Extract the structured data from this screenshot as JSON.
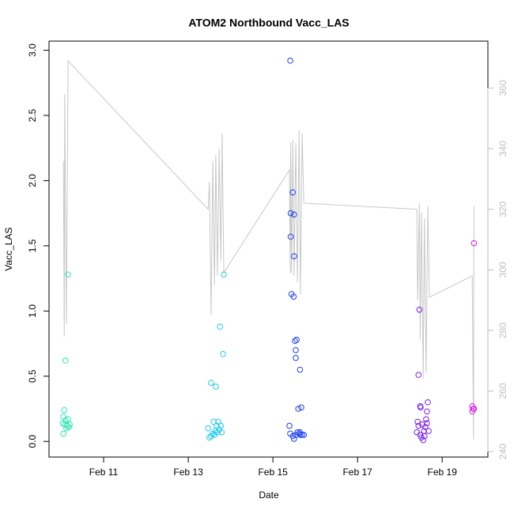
{
  "chart_data": {
    "type": "scatter",
    "title": "ATOM2 Northbound Vacc_LAS",
    "x_label": "Date",
    "y_label": "Vacc_LAS",
    "xlim": [
      9.71,
      20.08
    ],
    "ylim": [
      -0.12,
      3.07
    ],
    "y2lim": [
      238.2,
      375.5
    ],
    "xticks": [
      {
        "value": 11,
        "label": "Feb 11"
      },
      {
        "value": 13,
        "label": "Feb 13"
      },
      {
        "value": 15,
        "label": "Feb 15"
      },
      {
        "value": 17,
        "label": "Feb 17"
      },
      {
        "value": 19,
        "label": "Feb 19"
      }
    ],
    "yticks": [
      {
        "value": 0,
        "label": "0.0"
      },
      {
        "value": 0.5,
        "label": "0.5"
      },
      {
        "value": 1,
        "label": "1.0"
      },
      {
        "value": 1.5,
        "label": "1.5"
      },
      {
        "value": 2,
        "label": "2.0"
      },
      {
        "value": 2.5,
        "label": "2.5"
      },
      {
        "value": 3,
        "label": "3.0"
      }
    ],
    "y2ticks": [
      240,
      260,
      280,
      300,
      320,
      340,
      360
    ],
    "y2_color": "#bebebe",
    "series": [
      {
        "color": "#2ee6b4",
        "x": [
          10.16,
          10.1,
          10.07,
          10.05,
          10.1,
          10.16,
          10.03,
          10.08,
          10.14,
          10.2,
          10.05,
          10.12,
          10.18
        ],
        "values": [
          1.28,
          0.62,
          0.24,
          0.19,
          0.16,
          0.17,
          0.14,
          0.13,
          0.12,
          0.13,
          0.06,
          0.1,
          0.11
        ]
      },
      {
        "color": "#1ec8f0",
        "x": [
          13.84,
          13.75,
          13.82,
          13.54,
          13.65,
          13.47,
          13.5,
          13.54,
          13.58,
          13.6,
          13.64,
          13.67,
          13.71,
          13.73,
          13.77,
          13.79,
          13.62,
          13.69
        ],
        "values": [
          1.28,
          0.88,
          0.67,
          0.45,
          0.42,
          0.1,
          0.03,
          0.04,
          0.06,
          0.15,
          0.08,
          0.12,
          0.15,
          0.09,
          0.12,
          0.07,
          0.05,
          0.07
        ]
      },
      {
        "color": "#1e3ef0",
        "x": [
          15.41,
          15.47,
          15.42,
          15.5,
          15.42,
          15.5,
          15.44,
          15.49,
          15.52,
          15.56,
          15.54,
          15.54,
          15.64,
          15.67,
          15.6,
          15.39,
          15.41,
          15.47,
          15.5,
          15.54,
          15.58,
          15.62,
          15.65,
          15.69,
          15.73,
          15.64
        ],
        "values": [
          2.92,
          1.91,
          1.75,
          1.74,
          1.57,
          1.42,
          1.13,
          1.11,
          0.77,
          0.78,
          0.7,
          0.64,
          0.55,
          0.26,
          0.25,
          0.12,
          0.06,
          0.04,
          0.02,
          0.05,
          0.07,
          0.06,
          0.05,
          0.05,
          0.05,
          0.07
        ]
      },
      {
        "color": "#7a1ef0",
        "x": [
          18.46,
          18.44,
          18.48,
          18.49,
          18.66,
          18.64,
          18.42,
          18.44,
          18.4,
          18.48,
          18.51,
          18.55,
          18.58,
          18.57,
          18.6,
          18.62,
          18.68,
          18.53,
          18.64
        ],
        "values": [
          1.01,
          0.51,
          0.27,
          0.26,
          0.3,
          0.23,
          0.15,
          0.12,
          0.07,
          0.05,
          0.03,
          0.01,
          0.04,
          0.08,
          0.11,
          0.17,
          0.08,
          0.13,
          0.14
        ]
      },
      {
        "color": "#e01ef0",
        "x": [
          19.75,
          19.71,
          19.73,
          19.71,
          19.75
        ],
        "values": [
          1.52,
          0.27,
          0.25,
          0.23,
          0.25
        ]
      },
      {
        "type": "line",
        "axis": "y2",
        "color": "#c8c8c8",
        "x": [
          10.05,
          10.07,
          10.08,
          10.12,
          10.16,
          13.47,
          13.5,
          13.54,
          13.58,
          13.62,
          13.65,
          13.69,
          13.73,
          13.77,
          13.8,
          13.84,
          15.39,
          15.41,
          15.42,
          15.44,
          15.47,
          15.5,
          15.54,
          15.58,
          15.62,
          15.65,
          15.69,
          15.73,
          18.4,
          18.42,
          18.46,
          18.48,
          18.51,
          18.55,
          18.58,
          18.62,
          18.66,
          18.7,
          19.71,
          19.74,
          19.75
        ],
        "values": [
          336,
          278,
          358,
          282,
          369,
          320,
          329,
          285,
          336,
          295,
          338,
          298,
          340,
          303,
          345,
          299,
          333,
          299,
          342,
          299,
          343,
          298,
          342,
          296,
          346,
          292,
          345,
          322,
          320,
          290,
          322,
          277,
          319,
          264,
          317,
          266,
          321,
          291,
          298,
          244,
          321
        ]
      }
    ]
  }
}
